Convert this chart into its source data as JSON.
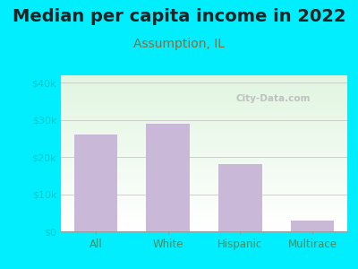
{
  "title": "Median per capita income in 2022",
  "subtitle": "Assumption, IL",
  "categories": [
    "All",
    "White",
    "Hispanic",
    "Multirace"
  ],
  "values": [
    26000,
    29000,
    18000,
    3000
  ],
  "bar_color": "#c9b8d8",
  "title_fontsize": 14,
  "subtitle_fontsize": 10,
  "subtitle_color": "#996633",
  "title_color": "#222222",
  "tick_color": "#558855",
  "ytick_color": "#00cccc",
  "bg_outer": "#00eeff",
  "ylim": [
    0,
    42000
  ],
  "yticks": [
    0,
    10000,
    20000,
    30000,
    40000
  ],
  "ytick_labels": [
    "$0",
    "$10k",
    "$20k",
    "$30k",
    "$40k"
  ],
  "watermark": "City-Data.com",
  "grid_color": "#bbbbbb",
  "bar_width": 0.6
}
